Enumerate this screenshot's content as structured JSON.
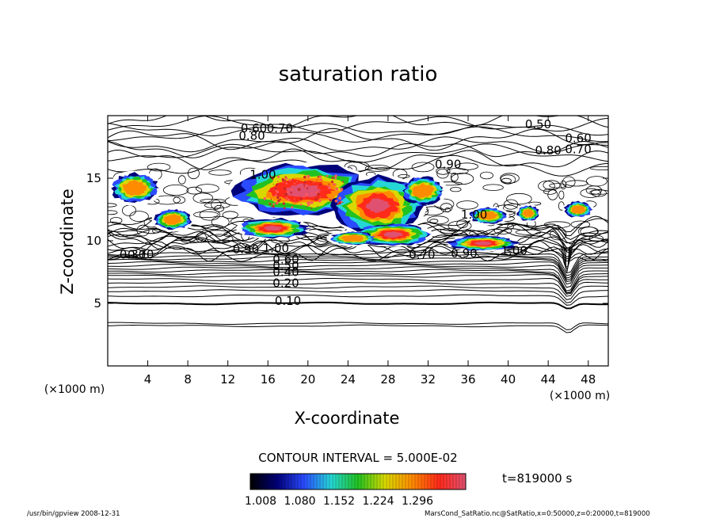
{
  "chart_data": {
    "type": "heatmap",
    "title": "saturation ratio",
    "xlabel": "X-coordinate",
    "ylabel": "Z-coordinate",
    "x_unit": "(×1000 m)",
    "y_unit": "(×1000 m)",
    "xlim": [
      0,
      50
    ],
    "ylim": [
      0,
      20
    ],
    "x_ticks": [
      4,
      8,
      12,
      16,
      20,
      24,
      28,
      32,
      36,
      40,
      44,
      48
    ],
    "y_ticks": [
      5,
      10,
      15
    ],
    "contour_interval_text": "CONTOUR INTERVAL = 5.000E-02",
    "time_label": "t=819000 s",
    "colorbar": {
      "labels": [
        "1.008",
        "1.080",
        "1.152",
        "1.224",
        "1.296"
      ],
      "colors": [
        "#000000",
        "#00007a",
        "#2a4bff",
        "#25d6d6",
        "#21c221",
        "#d8d800",
        "#ff8c00",
        "#ff2a1a",
        "#e05070"
      ]
    },
    "contour_labels": [
      {
        "text": "0.10",
        "x": 18,
        "z": 5.2
      },
      {
        "text": "0.20",
        "x": 17.8,
        "z": 6.6
      },
      {
        "text": "0.40",
        "x": 17.8,
        "z": 7.5
      },
      {
        "text": "0.50",
        "x": 17.8,
        "z": 8.0
      },
      {
        "text": "0.60",
        "x": 17.8,
        "z": 8.5
      },
      {
        "text": "1.00",
        "x": 16.8,
        "z": 9.4
      },
      {
        "text": "0.90",
        "x": 13.8,
        "z": 9.3
      },
      {
        "text": "0.70",
        "x": 3.3,
        "z": 8.9
      },
      {
        "text": "0.30",
        "x": 2.5,
        "z": 8.9
      },
      {
        "text": "0.70",
        "x": 31.4,
        "z": 8.9
      },
      {
        "text": "0.90",
        "x": 35.6,
        "z": 9.0
      },
      {
        "text": "1.00",
        "x": 40.6,
        "z": 9.2
      },
      {
        "text": "1.00",
        "x": 36.6,
        "z": 12.1
      },
      {
        "text": "1.00",
        "x": 15.5,
        "z": 15.3
      },
      {
        "text": "0.90",
        "x": 34.0,
        "z": 16.1
      },
      {
        "text": "0.60",
        "x": 14.6,
        "z": 19.0
      },
      {
        "text": "0.70",
        "x": 17.2,
        "z": 19.0
      },
      {
        "text": "0.80",
        "x": 14.4,
        "z": 18.4
      },
      {
        "text": "0.50",
        "x": 43.0,
        "z": 19.3
      },
      {
        "text": "0.60",
        "x": 47.0,
        "z": 18.2
      },
      {
        "text": "0.80",
        "x": 44.0,
        "z": 17.2
      },
      {
        "text": "0.70",
        "x": 47.0,
        "z": 17.3
      }
    ]
  },
  "footer": {
    "left": "/usr/bin/gpview   2008-12-31",
    "right": "MarsCond_SatRatio.nc@SatRatio,x=0:50000,z=0:20000,t=819000"
  }
}
